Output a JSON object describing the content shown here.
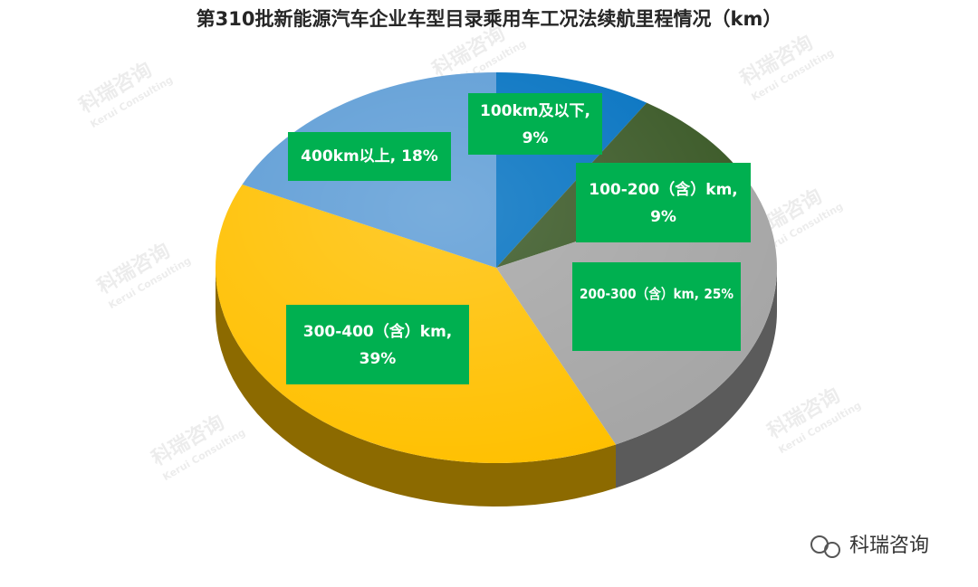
{
  "chart_data": {
    "type": "pie",
    "title": "第310批新能源汽车企业车型目录乘用车工况法续航里程情况（km）",
    "categories": [
      "100km及以下",
      "100-200（含）km",
      "200-300（含）km",
      "300-400（含）km",
      "400km以上"
    ],
    "values": [
      9,
      9,
      25,
      39,
      18
    ],
    "value_labels": [
      "9%",
      "9%",
      "25%",
      "39%",
      "18%"
    ],
    "label_separator": ",",
    "colors": [
      "#0070c0",
      "#375623",
      "#a5a5a5",
      "#ffc000",
      "#5b9bd5"
    ],
    "label_color": "#00b050",
    "start_angle": 0,
    "direction": "clockwise"
  },
  "watermark": "科瑞咨询",
  "watermark_subtitle": "Kerui Consulting",
  "footer": "科瑞咨询"
}
